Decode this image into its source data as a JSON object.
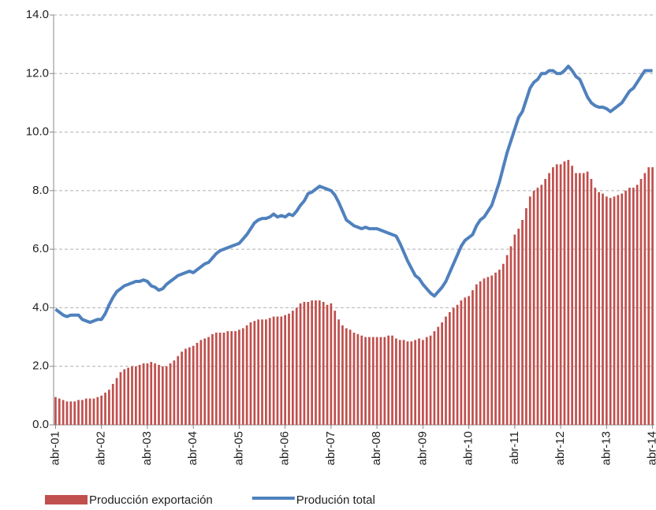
{
  "chart_data": {
    "type": "bar-line",
    "categories": [
      "abr-01",
      null,
      null,
      null,
      null,
      null,
      null,
      null,
      null,
      null,
      null,
      null,
      "abr-02",
      null,
      null,
      null,
      null,
      null,
      null,
      null,
      null,
      null,
      null,
      null,
      "abr-03",
      null,
      null,
      null,
      null,
      null,
      null,
      null,
      null,
      null,
      null,
      null,
      "abr-04",
      null,
      null,
      null,
      null,
      null,
      null,
      null,
      null,
      null,
      null,
      null,
      "abr-05",
      null,
      null,
      null,
      null,
      null,
      null,
      null,
      null,
      null,
      null,
      null,
      "abr-06",
      null,
      null,
      null,
      null,
      null,
      null,
      null,
      null,
      null,
      null,
      null,
      "abr-07",
      null,
      null,
      null,
      null,
      null,
      null,
      null,
      null,
      null,
      null,
      null,
      "abr-08",
      null,
      null,
      null,
      null,
      null,
      null,
      null,
      null,
      null,
      null,
      null,
      "abr-09",
      null,
      null,
      null,
      null,
      null,
      null,
      null,
      null,
      null,
      null,
      null,
      "abr-10",
      null,
      null,
      null,
      null,
      null,
      null,
      null,
      null,
      null,
      null,
      null,
      "abr-11",
      null,
      null,
      null,
      null,
      null,
      null,
      null,
      null,
      null,
      null,
      null,
      "abr-12",
      null,
      null,
      null,
      null,
      null,
      null,
      null,
      null,
      null,
      null,
      null,
      "abr-13",
      null,
      null,
      null,
      null,
      null,
      null,
      null,
      null,
      null,
      null,
      null,
      "abr-14"
    ],
    "series": [
      {
        "name": "Producción exportación",
        "kind": "bar",
        "color": "#c0504d",
        "values": [
          0.95,
          0.9,
          0.85,
          0.8,
          0.8,
          0.8,
          0.85,
          0.85,
          0.9,
          0.9,
          0.9,
          0.95,
          1.0,
          1.1,
          1.2,
          1.4,
          1.6,
          1.8,
          1.9,
          1.95,
          2.0,
          2.0,
          2.05,
          2.1,
          2.1,
          2.15,
          2.1,
          2.05,
          2.0,
          2.0,
          2.1,
          2.2,
          2.35,
          2.5,
          2.6,
          2.65,
          2.7,
          2.8,
          2.9,
          2.95,
          3.0,
          3.1,
          3.15,
          3.15,
          3.15,
          3.2,
          3.2,
          3.2,
          3.25,
          3.3,
          3.4,
          3.5,
          3.55,
          3.6,
          3.6,
          3.6,
          3.65,
          3.7,
          3.7,
          3.7,
          3.75,
          3.8,
          3.9,
          4.0,
          4.15,
          4.2,
          4.2,
          4.25,
          4.25,
          4.25,
          4.2,
          4.1,
          4.15,
          3.9,
          3.6,
          3.4,
          3.3,
          3.25,
          3.15,
          3.1,
          3.05,
          3.0,
          3.0,
          3.0,
          3.0,
          3.0,
          3.0,
          3.05,
          3.05,
          2.95,
          2.9,
          2.9,
          2.85,
          2.85,
          2.9,
          2.95,
          2.9,
          3.0,
          3.05,
          3.2,
          3.35,
          3.5,
          3.7,
          3.85,
          4.0,
          4.1,
          4.25,
          4.35,
          4.4,
          4.6,
          4.8,
          4.9,
          5.0,
          5.05,
          5.1,
          5.2,
          5.3,
          5.5,
          5.8,
          6.1,
          6.5,
          6.7,
          7.0,
          7.4,
          7.8,
          8.0,
          8.1,
          8.2,
          8.4,
          8.6,
          8.8,
          8.9,
          8.9,
          9.0,
          9.05,
          8.85,
          8.6,
          8.6,
          8.6,
          8.65,
          8.4,
          8.1,
          7.95,
          7.9,
          7.8,
          7.75,
          7.8,
          7.85,
          7.9,
          8.0,
          8.1,
          8.1,
          8.2,
          8.4,
          8.6,
          8.8,
          8.8
        ]
      },
      {
        "name": "Produción total",
        "kind": "line",
        "color": "#4f81bd",
        "values": [
          3.95,
          3.85,
          3.75,
          3.7,
          3.75,
          3.75,
          3.75,
          3.6,
          3.55,
          3.5,
          3.55,
          3.6,
          3.6,
          3.8,
          4.1,
          4.35,
          4.55,
          4.65,
          4.75,
          4.8,
          4.85,
          4.9,
          4.9,
          4.95,
          4.9,
          4.75,
          4.7,
          4.6,
          4.65,
          4.8,
          4.9,
          5.0,
          5.1,
          5.15,
          5.2,
          5.25,
          5.2,
          5.3,
          5.4,
          5.5,
          5.55,
          5.7,
          5.85,
          5.95,
          6.0,
          6.05,
          6.1,
          6.15,
          6.2,
          6.35,
          6.5,
          6.7,
          6.9,
          7.0,
          7.05,
          7.05,
          7.1,
          7.2,
          7.1,
          7.15,
          7.1,
          7.2,
          7.15,
          7.3,
          7.5,
          7.65,
          7.9,
          7.95,
          8.05,
          8.15,
          8.1,
          8.05,
          8.0,
          7.85,
          7.6,
          7.3,
          7.0,
          6.9,
          6.8,
          6.75,
          6.7,
          6.75,
          6.7,
          6.7,
          6.7,
          6.65,
          6.6,
          6.55,
          6.5,
          6.45,
          6.2,
          5.9,
          5.6,
          5.35,
          5.1,
          5.0,
          4.8,
          4.65,
          4.5,
          4.4,
          4.55,
          4.7,
          4.9,
          5.2,
          5.5,
          5.8,
          6.1,
          6.3,
          6.4,
          6.5,
          6.8,
          7.0,
          7.1,
          7.3,
          7.5,
          7.9,
          8.3,
          8.8,
          9.3,
          9.7,
          10.1,
          10.5,
          10.7,
          11.1,
          11.5,
          11.7,
          11.8,
          12.0,
          12.0,
          12.1,
          12.1,
          12.0,
          12.0,
          12.1,
          12.25,
          12.1,
          11.9,
          11.8,
          11.5,
          11.2,
          11.0,
          10.9,
          10.85,
          10.85,
          10.8,
          10.7,
          10.8,
          10.9,
          11.0,
          11.2,
          11.4,
          11.5,
          11.7,
          11.9,
          12.1,
          12.1,
          12.1
        ]
      }
    ],
    "ylim": [
      0,
      14
    ],
    "yticks": [
      {
        "value": 0,
        "label": "0.0"
      },
      {
        "value": 2,
        "label": "2.0"
      },
      {
        "value": 4,
        "label": "4.0"
      },
      {
        "value": 6,
        "label": "6.0"
      },
      {
        "value": 8,
        "label": "8.0"
      },
      {
        "value": 10,
        "label": "10.0"
      },
      {
        "value": 12,
        "label": "12.0"
      },
      {
        "value": 14,
        "label": "14.0"
      }
    ],
    "grid": true,
    "legend": "bottom"
  }
}
